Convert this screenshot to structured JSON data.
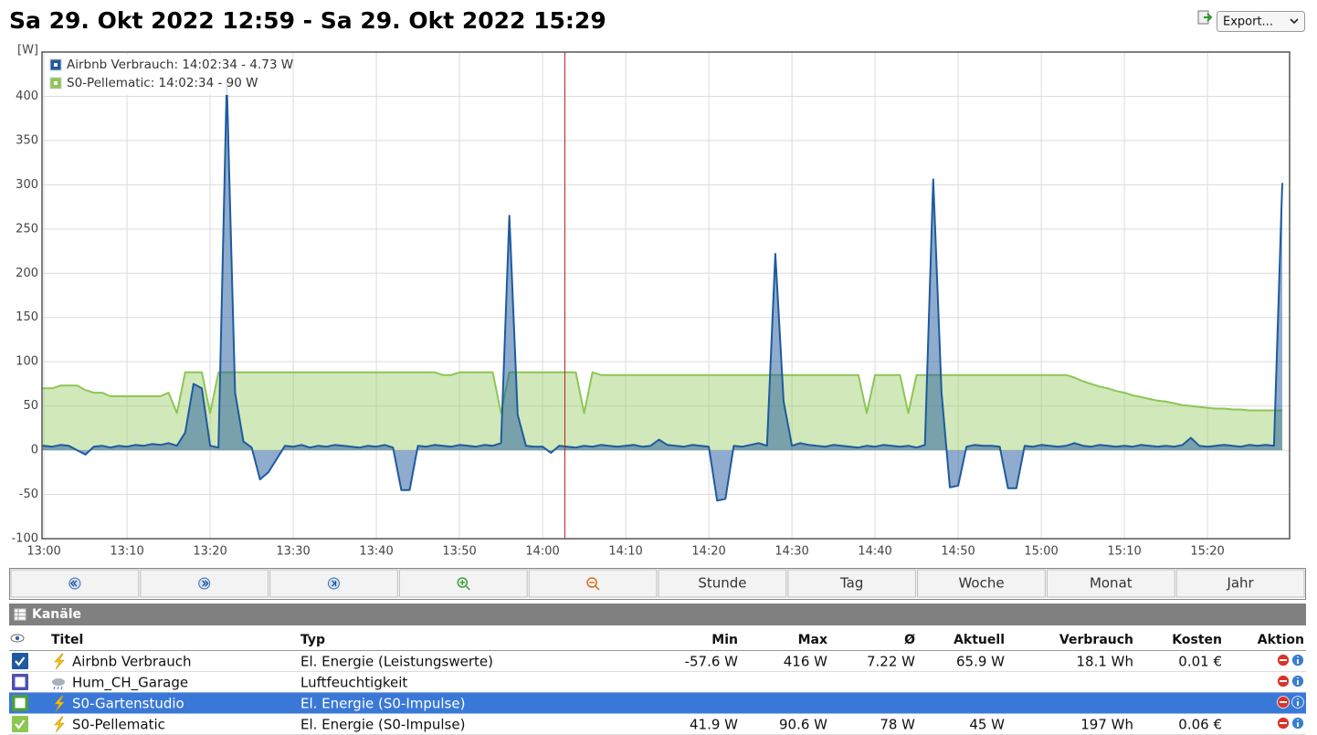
{
  "header": {
    "title": "Sa 29. Okt 2022 12:59 - Sa 29. Okt 2022 15:29",
    "export": "Export..."
  },
  "chart_data": {
    "type": "area",
    "y_label": "[W]",
    "grid": true,
    "legend": "upper left",
    "x": [
      "12:59",
      "13:00",
      "13:01",
      "13:02",
      "13:03",
      "13:04",
      "13:05",
      "13:06",
      "13:07",
      "13:08",
      "13:09",
      "13:10",
      "13:11",
      "13:12",
      "13:13",
      "13:14",
      "13:15",
      "13:16",
      "13:17",
      "13:18",
      "13:19",
      "13:20",
      "13:21",
      "13:22",
      "13:23",
      "13:24",
      "13:25",
      "13:26",
      "13:27",
      "13:28",
      "13:29",
      "13:30",
      "13:31",
      "13:32",
      "13:33",
      "13:34",
      "13:35",
      "13:36",
      "13:37",
      "13:38",
      "13:39",
      "13:40",
      "13:41",
      "13:42",
      "13:43",
      "13:44",
      "13:45",
      "13:46",
      "13:47",
      "13:48",
      "13:49",
      "13:50",
      "13:51",
      "13:52",
      "13:53",
      "13:54",
      "13:55",
      "13:56",
      "13:57",
      "13:58",
      "13:59",
      "14:00",
      "14:01",
      "14:02",
      "14:03",
      "14:04",
      "14:05",
      "14:06",
      "14:07",
      "14:08",
      "14:09",
      "14:10",
      "14:11",
      "14:12",
      "14:13",
      "14:14",
      "14:15",
      "14:16",
      "14:17",
      "14:18",
      "14:19",
      "14:20",
      "14:21",
      "14:22",
      "14:23",
      "14:24",
      "14:25",
      "14:26",
      "14:27",
      "14:28",
      "14:29",
      "14:30",
      "14:31",
      "14:32",
      "14:33",
      "14:34",
      "14:35",
      "14:36",
      "14:37",
      "14:38",
      "14:39",
      "14:40",
      "14:41",
      "14:42",
      "14:43",
      "14:44",
      "14:45",
      "14:46",
      "14:47",
      "14:48",
      "14:49",
      "14:50",
      "14:51",
      "14:52",
      "14:53",
      "14:54",
      "14:55",
      "14:56",
      "14:57",
      "14:58",
      "14:59",
      "15:00",
      "15:01",
      "15:02",
      "15:03",
      "15:04",
      "15:05",
      "15:06",
      "15:07",
      "15:08",
      "15:09",
      "15:10",
      "15:11",
      "15:12",
      "15:13",
      "15:14",
      "15:15",
      "15:16",
      "15:17",
      "15:18",
      "15:19",
      "15:20",
      "15:21",
      "15:22",
      "15:23",
      "15:24",
      "15:25",
      "15:26",
      "15:27",
      "15:28",
      "15:29"
    ],
    "xlim": [
      "12:59",
      "15:29"
    ],
    "xticks": [
      "13:00",
      "13:10",
      "13:20",
      "13:30",
      "13:40",
      "13:50",
      "14:00",
      "14:10",
      "14:20",
      "14:30",
      "14:40",
      "14:50",
      "15:00",
      "15:10",
      "15:20"
    ],
    "ylim": [
      -100,
      450
    ],
    "yticks": [
      -100,
      -50,
      0,
      50,
      100,
      150,
      200,
      250,
      300,
      350,
      400
    ],
    "series": [
      {
        "name": "S0-Pellematic: 14:02:34 - 90 W",
        "color": "#8dc653",
        "values": [
          70,
          70,
          70,
          73,
          73,
          73,
          68,
          65,
          65,
          61,
          61,
          61,
          61,
          61,
          61,
          61,
          65,
          42,
          88,
          88,
          88,
          42,
          88,
          88,
          88,
          88,
          88,
          88,
          88,
          88,
          88,
          88,
          88,
          88,
          88,
          88,
          88,
          88,
          88,
          88,
          88,
          88,
          88,
          88,
          88,
          88,
          88,
          88,
          88,
          85,
          85,
          88,
          88,
          88,
          88,
          88,
          42,
          88,
          88,
          88,
          88,
          88,
          88,
          88,
          88,
          88,
          42,
          88,
          85,
          85,
          85,
          85,
          85,
          85,
          85,
          85,
          85,
          85,
          85,
          85,
          85,
          85,
          85,
          85,
          85,
          85,
          85,
          85,
          85,
          85,
          85,
          85,
          85,
          85,
          85,
          85,
          85,
          85,
          85,
          85,
          42,
          85,
          85,
          85,
          85,
          42,
          85,
          85,
          85,
          85,
          85,
          85,
          85,
          85,
          85,
          85,
          85,
          85,
          85,
          85,
          85,
          85,
          85,
          85,
          85,
          82,
          78,
          75,
          72,
          70,
          67,
          65,
          62,
          60,
          58,
          56,
          55,
          53,
          51,
          50,
          49,
          48,
          47,
          47,
          46,
          46,
          45,
          45,
          45,
          45,
          45
        ]
      },
      {
        "name": "Airbnb Verbrauch: 14:02:34 - 4.73 W",
        "color": "#1f5a9e",
        "values": [
          5,
          5,
          4,
          6,
          5,
          0,
          -5,
          4,
          5,
          3,
          5,
          4,
          6,
          5,
          7,
          6,
          8,
          5,
          20,
          75,
          70,
          5,
          3,
          416,
          65,
          10,
          3,
          -33,
          -25,
          -10,
          5,
          4,
          6,
          3,
          5,
          4,
          6,
          5,
          4,
          3,
          5,
          4,
          6,
          3,
          -45,
          -45,
          5,
          4,
          6,
          5,
          4,
          6,
          5,
          4,
          6,
          5,
          8,
          265,
          40,
          5,
          4,
          4,
          -3,
          5,
          4,
          3,
          5,
          4,
          6,
          5,
          4,
          5,
          6,
          4,
          5,
          12,
          6,
          5,
          4,
          6,
          5,
          4,
          -57,
          -55,
          5,
          4,
          6,
          8,
          5,
          222,
          55,
          5,
          8,
          6,
          5,
          4,
          6,
          5,
          4,
          3,
          5,
          4,
          6,
          5,
          4,
          5,
          3,
          6,
          306,
          65,
          -42,
          -40,
          4,
          6,
          5,
          5,
          4,
          -43,
          -43,
          5,
          4,
          6,
          5,
          4,
          5,
          8,
          5,
          4,
          6,
          5,
          4,
          5,
          4,
          6,
          5,
          4,
          5,
          4,
          6,
          14,
          5,
          4,
          5,
          6,
          5,
          4,
          6,
          5,
          6,
          5,
          302
        ]
      }
    ]
  },
  "navigation": {
    "buttons": [
      "Stunde",
      "Tag",
      "Woche",
      "Monat",
      "Jahr"
    ]
  },
  "channels": {
    "title": "Kanäle",
    "columns": [
      "Titel",
      "Typ",
      "Min",
      "Max",
      "Ø",
      "Aktuell",
      "Verbrauch",
      "Kosten",
      "Aktion"
    ],
    "rows": [
      {
        "color": "#1f5a9e",
        "checked": true,
        "icon": "power",
        "title": "Airbnb Verbrauch",
        "type": "El. Energie (Leistungswerte)",
        "min": "-57.6 W",
        "max": "416 W",
        "avg": "7.22 W",
        "current": "65.9 W",
        "consumption": "18.1 Wh",
        "cost": "0.01 €"
      },
      {
        "color": "#5050b0",
        "checked": false,
        "icon": "humidity",
        "title": "Hum_CH_Garage",
        "type": "Luftfeuchtigkeit"
      },
      {
        "color": "#4d9e3f",
        "checked": false,
        "icon": "power",
        "selected": true,
        "title": "S0-Gartenstudio",
        "type": "El. Energie (S0-Impulse)"
      },
      {
        "color": "#8dc653",
        "checked": true,
        "icon": "power",
        "title": "S0-Pellematic",
        "type": "El. Energie (S0-Impulse)",
        "min": "41.9 W",
        "max": "90.6 W",
        "avg": "78 W",
        "current": "45 W",
        "consumption": "197 Wh",
        "cost": "0.06 €"
      }
    ]
  }
}
